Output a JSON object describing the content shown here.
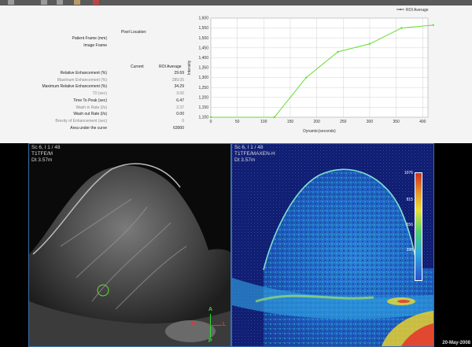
{
  "analysis": {
    "pixel_location_label": "Pixel Location:",
    "patient_frame_label": "Patient Frame (mm)",
    "image_frame_label": "Image Frame",
    "col_current": "Current",
    "col_roi": "ROI Average",
    "rows": [
      {
        "label": "Relative Enhancement (%)",
        "roi": "29.69",
        "dim": false
      },
      {
        "label": "Maximum Enhancement (%)",
        "roi": "289.05",
        "dim": true
      },
      {
        "label": "Maximum Relative Enhancement (%)",
        "roi": "34.29",
        "dim": false
      },
      {
        "label": "T0 (sec)",
        "roi": "3.00",
        "dim": true
      },
      {
        "label": "Time To Peak (sec)",
        "roi": "6.47",
        "dim": false
      },
      {
        "label": "Wash in Rate (l/s)",
        "roi": "2.37",
        "dim": true
      },
      {
        "label": "Wash out Rate (l/s)",
        "roi": "0.00",
        "dim": false
      },
      {
        "label": "Brevity of Enhancement (sec)",
        "roi": "0",
        "dim": true
      },
      {
        "label": "Area under the curve",
        "roi": "63000",
        "dim": false
      }
    ]
  },
  "chart_data": {
    "type": "line",
    "series": [
      {
        "name": "ROI Average",
        "color": "#66dd33"
      }
    ],
    "x": [
      0,
      120,
      180,
      240,
      300,
      360,
      420
    ],
    "y": [
      1100,
      1100,
      1300,
      1430,
      1470,
      1550,
      1565
    ],
    "xlabel": "Dynamic(seconds)",
    "ylabel": "Intensity",
    "xticks": [
      0,
      50,
      100,
      150,
      200,
      250,
      300,
      350,
      400
    ],
    "yticks": [
      1100,
      1150,
      1200,
      1250,
      1300,
      1350,
      1400,
      1450,
      1500,
      1550,
      1600
    ],
    "ytick_labels": [
      "1,100",
      "1,150",
      "1,200",
      "1,250",
      "1,300",
      "1,350",
      "1,400",
      "1,450",
      "1,500",
      "1,550",
      "1,600"
    ],
    "xlim": [
      0,
      410
    ],
    "ylim": [
      1100,
      1600
    ],
    "grid": true,
    "legend": "top-right"
  },
  "left_viewport": {
    "line1": "Sc 6, I 1 / 48",
    "line2": "T1TFE/M",
    "line3": "Dt  3.57m",
    "orient_top": "A",
    "orient_bottom": "P",
    "orient_left": "R",
    "orient_right": "L"
  },
  "right_viewport": {
    "line1": "Sc 6, I 1 / 48",
    "line2": "T1TFE/MAXEN-H",
    "line3": "Dt  3.57m",
    "scale_labels": [
      "1076",
      "815",
      "556",
      "296"
    ]
  },
  "date": "20-May-2008",
  "colors": {
    "accent": "#3a6ea8",
    "curve": "#66dd33"
  }
}
